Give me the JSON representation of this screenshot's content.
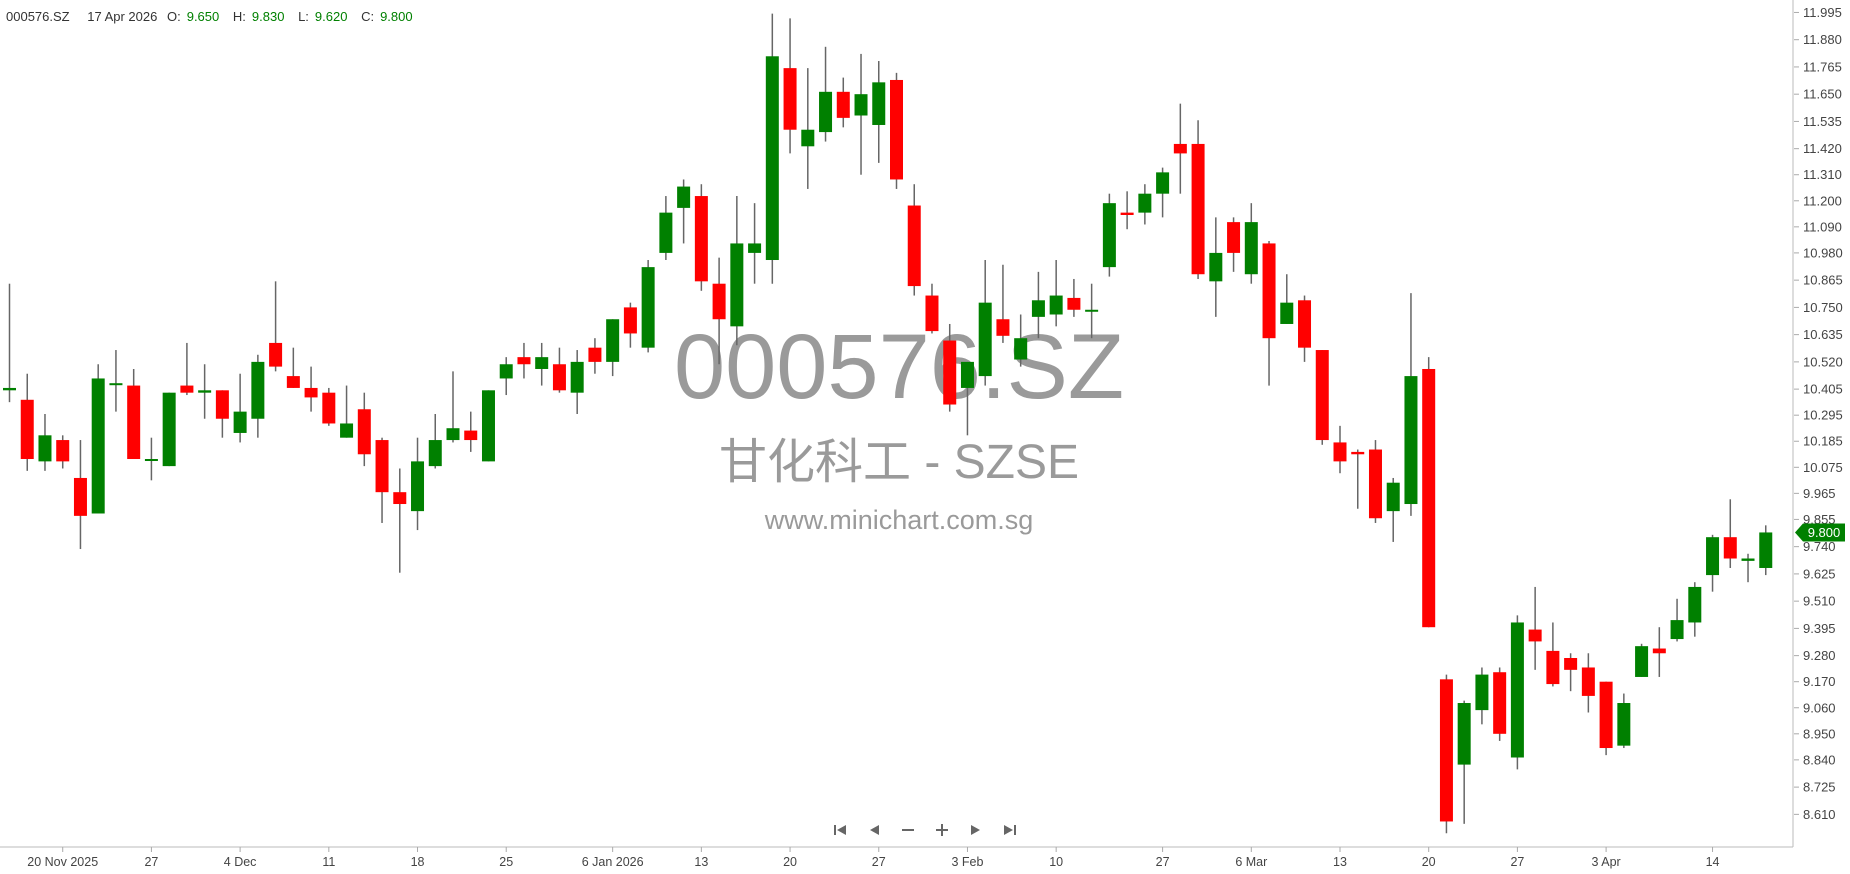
{
  "header": {
    "symbol": "000576.SZ",
    "date": "17 Apr 2026",
    "open_label": "O:",
    "open": "9.650",
    "high_label": "H:",
    "high": "9.830",
    "low_label": "L:",
    "low": "9.620",
    "close_label": "C:",
    "close": "9.800"
  },
  "watermark": {
    "symbol": "000576.SZ",
    "name": "甘化科工 - SZSE",
    "site": "www.minichart.com.sg"
  },
  "navigation": {
    "icons": [
      "first-icon",
      "prev-icon",
      "zoom-out-icon",
      "zoom-in-icon",
      "next-icon",
      "last-icon"
    ]
  },
  "colors": {
    "up": "#008000",
    "down": "#ff0000",
    "wick": "#666666",
    "watermark": "#9a9a9a",
    "axis": "#bbbbbb"
  },
  "chart_data": {
    "type": "candlestick",
    "title": "",
    "last_price_tag": "9.800",
    "ylim": [
      8.5,
      12.05
    ],
    "grid": false,
    "y_ticks": [
      "11.995",
      "11.880",
      "11.765",
      "11.650",
      "11.535",
      "11.420",
      "11.310",
      "11.200",
      "11.090",
      "10.980",
      "10.865",
      "10.750",
      "10.635",
      "10.520",
      "10.405",
      "10.295",
      "10.185",
      "10.075",
      "9.965",
      "9.855",
      "9.740",
      "9.625",
      "9.510",
      "9.395",
      "9.280",
      "9.170",
      "9.060",
      "8.950",
      "8.840",
      "8.725",
      "8.610"
    ],
    "x_ticks": [
      {
        "date": "2025-11-20",
        "label": "20 Nov 2025"
      },
      {
        "date": "2025-11-27",
        "label": "27"
      },
      {
        "date": "2025-12-04",
        "label": "4 Dec"
      },
      {
        "date": "2025-12-11",
        "label": "11"
      },
      {
        "date": "2025-12-18",
        "label": "18"
      },
      {
        "date": "2025-12-25",
        "label": "25"
      },
      {
        "date": "2026-01-06",
        "label": "6 Jan 2026"
      },
      {
        "date": "2026-01-13",
        "label": "13"
      },
      {
        "date": "2026-01-20",
        "label": "20"
      },
      {
        "date": "2026-01-27",
        "label": "27"
      },
      {
        "date": "2026-02-03",
        "label": "3 Feb"
      },
      {
        "date": "2026-02-10",
        "label": "10"
      },
      {
        "date": "2026-02-27",
        "label": "27"
      },
      {
        "date": "2026-03-06",
        "label": "6 Mar"
      },
      {
        "date": "2026-03-13",
        "label": "13"
      },
      {
        "date": "2026-03-20",
        "label": "20"
      },
      {
        "date": "2026-03-27",
        "label": "27"
      },
      {
        "date": "2026-04-03",
        "label": "3 Apr"
      },
      {
        "date": "2026-04-14",
        "label": "14"
      }
    ],
    "columns": [
      "date",
      "open",
      "high",
      "low",
      "close"
    ],
    "candles": [
      [
        "2025-11-17",
        10.4,
        10.85,
        10.35,
        10.41
      ],
      [
        "2025-11-18",
        10.36,
        10.47,
        10.06,
        10.11
      ],
      [
        "2025-11-19",
        10.1,
        10.3,
        10.06,
        10.21
      ],
      [
        "2025-11-20",
        10.19,
        10.21,
        10.07,
        10.1
      ],
      [
        "2025-11-21",
        10.03,
        10.19,
        9.73,
        9.87
      ],
      [
        "2025-11-24",
        9.88,
        10.51,
        9.88,
        10.45
      ],
      [
        "2025-11-25",
        10.43,
        10.57,
        10.31,
        10.43
      ],
      [
        "2025-11-26",
        10.42,
        10.49,
        10.11,
        10.11
      ],
      [
        "2025-11-27",
        10.11,
        10.2,
        10.02,
        10.11
      ],
      [
        "2025-11-28",
        10.08,
        10.39,
        10.08,
        10.39
      ],
      [
        "2025-12-01",
        10.42,
        10.6,
        10.38,
        10.39
      ],
      [
        "2025-12-02",
        10.39,
        10.51,
        10.28,
        10.4
      ],
      [
        "2025-12-03",
        10.4,
        10.4,
        10.2,
        10.28
      ],
      [
        "2025-12-04",
        10.22,
        10.47,
        10.18,
        10.31
      ],
      [
        "2025-12-05",
        10.28,
        10.55,
        10.2,
        10.52
      ],
      [
        "2025-12-08",
        10.6,
        10.86,
        10.48,
        10.5
      ],
      [
        "2025-12-09",
        10.46,
        10.58,
        10.41,
        10.41
      ],
      [
        "2025-12-10",
        10.41,
        10.5,
        10.31,
        10.37
      ],
      [
        "2025-12-11",
        10.39,
        10.41,
        10.25,
        10.26
      ],
      [
        "2025-12-12",
        10.2,
        10.42,
        10.2,
        10.26
      ],
      [
        "2025-12-15",
        10.32,
        10.39,
        10.08,
        10.13
      ],
      [
        "2025-12-16",
        10.19,
        10.2,
        9.84,
        9.97
      ],
      [
        "2025-12-17",
        9.97,
        10.07,
        9.63,
        9.92
      ],
      [
        "2025-12-18",
        9.89,
        10.2,
        9.81,
        10.1
      ],
      [
        "2025-12-19",
        10.08,
        10.3,
        10.07,
        10.19
      ],
      [
        "2025-12-22",
        10.19,
        10.48,
        10.18,
        10.24
      ],
      [
        "2025-12-23",
        10.23,
        10.31,
        10.14,
        10.19
      ],
      [
        "2025-12-24",
        10.1,
        10.4,
        10.1,
        10.4
      ],
      [
        "2025-12-25",
        10.45,
        10.54,
        10.38,
        10.51
      ],
      [
        "2025-12-26",
        10.54,
        10.6,
        10.45,
        10.51
      ],
      [
        "2025-12-29",
        10.49,
        10.6,
        10.42,
        10.54
      ],
      [
        "2025-12-30",
        10.51,
        10.58,
        10.39,
        10.4
      ],
      [
        "2025-12-31",
        10.39,
        10.57,
        10.3,
        10.52
      ],
      [
        "2026-01-05",
        10.58,
        10.62,
        10.47,
        10.52
      ],
      [
        "2026-01-06",
        10.52,
        10.7,
        10.46,
        10.7
      ],
      [
        "2026-01-07",
        10.75,
        10.77,
        10.58,
        10.64
      ],
      [
        "2026-01-08",
        10.58,
        10.95,
        10.56,
        10.92
      ],
      [
        "2026-01-09",
        10.98,
        11.22,
        10.95,
        11.15
      ],
      [
        "2026-01-12",
        11.17,
        11.29,
        11.02,
        11.26
      ],
      [
        "2026-01-13",
        11.22,
        11.27,
        10.82,
        10.86
      ],
      [
        "2026-01-14",
        10.85,
        10.96,
        10.51,
        10.7
      ],
      [
        "2026-01-15",
        10.67,
        11.22,
        10.59,
        11.02
      ],
      [
        "2026-01-16",
        10.98,
        11.19,
        10.85,
        11.02
      ],
      [
        "2026-01-19",
        10.95,
        11.99,
        10.85,
        11.81
      ],
      [
        "2026-01-20",
        11.76,
        11.97,
        11.4,
        11.5
      ],
      [
        "2026-01-21",
        11.43,
        11.76,
        11.25,
        11.5
      ],
      [
        "2026-01-22",
        11.49,
        11.85,
        11.45,
        11.66
      ],
      [
        "2026-01-23",
        11.66,
        11.72,
        11.51,
        11.55
      ],
      [
        "2026-01-26",
        11.56,
        11.82,
        11.31,
        11.65
      ],
      [
        "2026-01-27",
        11.52,
        11.79,
        11.36,
        11.7
      ],
      [
        "2026-01-28",
        11.71,
        11.74,
        11.25,
        11.29
      ],
      [
        "2026-01-29",
        11.18,
        11.27,
        10.8,
        10.84
      ],
      [
        "2026-01-30",
        10.8,
        10.85,
        10.64,
        10.65
      ],
      [
        "2026-02-02",
        10.61,
        10.68,
        10.31,
        10.34
      ],
      [
        "2026-02-03",
        10.41,
        10.52,
        10.21,
        10.52
      ],
      [
        "2026-02-04",
        10.46,
        10.95,
        10.42,
        10.77
      ],
      [
        "2026-02-05",
        10.7,
        10.93,
        10.6,
        10.63
      ],
      [
        "2026-02-06",
        10.53,
        10.72,
        10.5,
        10.62
      ],
      [
        "2026-02-09",
        10.71,
        10.9,
        10.62,
        10.78
      ],
      [
        "2026-02-10",
        10.72,
        10.95,
        10.67,
        10.8
      ],
      [
        "2026-02-11",
        10.79,
        10.87,
        10.71,
        10.74
      ],
      [
        "2026-02-12",
        10.74,
        10.85,
        10.62,
        10.74
      ],
      [
        "2026-02-13",
        10.92,
        11.23,
        10.88,
        11.19
      ],
      [
        "2026-02-25",
        11.15,
        11.24,
        11.08,
        11.14
      ],
      [
        "2026-02-26",
        11.15,
        11.27,
        11.1,
        11.23
      ],
      [
        "2026-02-27",
        11.23,
        11.34,
        11.13,
        11.32
      ],
      [
        "2026-03-02",
        11.44,
        11.61,
        11.23,
        11.4
      ],
      [
        "2026-03-03",
        11.44,
        11.54,
        10.87,
        10.89
      ],
      [
        "2026-03-04",
        10.86,
        11.13,
        10.71,
        10.98
      ],
      [
        "2026-03-05",
        11.11,
        11.13,
        10.9,
        10.98
      ],
      [
        "2026-03-06",
        10.89,
        11.19,
        10.85,
        11.11
      ],
      [
        "2026-03-09",
        11.02,
        11.03,
        10.42,
        10.62
      ],
      [
        "2026-03-10",
        10.68,
        10.89,
        10.68,
        10.77
      ],
      [
        "2026-03-11",
        10.78,
        10.8,
        10.52,
        10.58
      ],
      [
        "2026-03-12",
        10.57,
        10.57,
        10.17,
        10.19
      ],
      [
        "2026-03-13",
        10.18,
        10.25,
        10.05,
        10.1
      ],
      [
        "2026-03-16",
        10.14,
        10.15,
        9.9,
        10.13
      ],
      [
        "2026-03-17",
        10.15,
        10.19,
        9.84,
        9.86
      ],
      [
        "2026-03-18",
        9.89,
        10.03,
        9.76,
        10.01
      ],
      [
        "2026-03-19",
        9.92,
        10.81,
        9.87,
        10.46
      ],
      [
        "2026-03-20",
        10.49,
        10.54,
        9.4,
        9.4
      ],
      [
        "2026-03-23",
        9.18,
        9.2,
        8.53,
        8.58
      ],
      [
        "2026-03-24",
        8.82,
        9.09,
        8.57,
        9.08
      ],
      [
        "2026-03-25",
        9.05,
        9.23,
        8.99,
        9.2
      ],
      [
        "2026-03-26",
        9.21,
        9.23,
        8.92,
        8.95
      ],
      [
        "2026-03-27",
        8.85,
        9.45,
        8.8,
        9.42
      ],
      [
        "2026-03-30",
        9.39,
        9.57,
        9.22,
        9.34
      ],
      [
        "2026-03-31",
        9.3,
        9.42,
        9.15,
        9.16
      ],
      [
        "2026-04-01",
        9.27,
        9.29,
        9.13,
        9.22
      ],
      [
        "2026-04-02",
        9.23,
        9.29,
        9.04,
        9.11
      ],
      [
        "2026-04-03",
        9.17,
        9.17,
        8.86,
        8.89
      ],
      [
        "2026-04-07",
        8.9,
        9.12,
        8.89,
        9.08
      ],
      [
        "2026-04-08",
        9.19,
        9.33,
        9.19,
        9.32
      ],
      [
        "2026-04-09",
        9.31,
        9.4,
        9.19,
        9.29
      ],
      [
        "2026-04-10",
        9.35,
        9.52,
        9.34,
        9.43
      ],
      [
        "2026-04-13",
        9.42,
        9.59,
        9.36,
        9.57
      ],
      [
        "2026-04-14",
        9.62,
        9.79,
        9.55,
        9.78
      ],
      [
        "2026-04-15",
        9.78,
        9.94,
        9.65,
        9.69
      ],
      [
        "2026-04-16",
        9.68,
        9.71,
        9.59,
        9.69
      ],
      [
        "2026-04-17",
        9.65,
        9.83,
        9.62,
        9.8
      ]
    ]
  }
}
